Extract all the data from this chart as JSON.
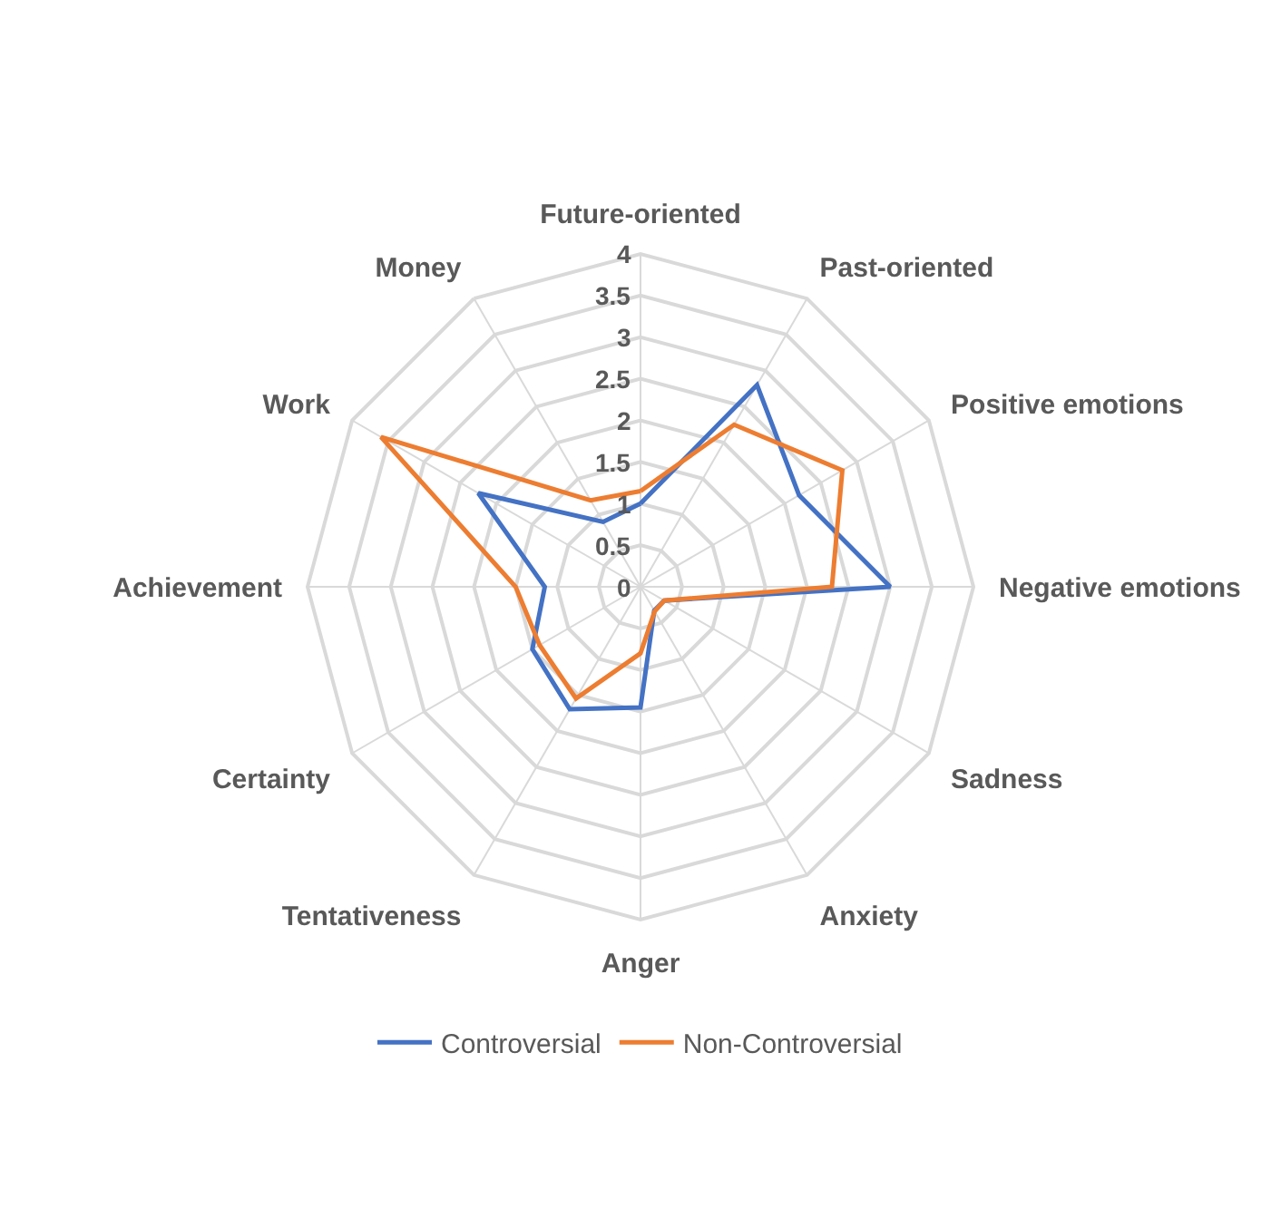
{
  "chart_data": {
    "type": "radar",
    "categories": [
      "Future-oriented",
      "Past-oriented",
      "Positive emotions",
      "Negative emotions",
      "Sadness",
      "Anxiety",
      "Anger",
      "Tentativeness",
      "Certainty",
      "Achievement",
      "Work",
      "Money"
    ],
    "series": [
      {
        "name": "Controversial",
        "color": "#4472c4",
        "values": [
          1.0,
          2.8,
          2.2,
          3.0,
          0.33,
          0.33,
          1.45,
          1.7,
          1.5,
          1.15,
          2.25,
          0.9
        ]
      },
      {
        "name": "Non-Controversial",
        "color": "#ed7d31",
        "values": [
          1.15,
          2.25,
          2.8,
          2.3,
          0.33,
          0.34,
          0.8,
          1.55,
          1.4,
          1.5,
          3.6,
          1.2
        ]
      }
    ],
    "ylim": [
      0,
      4
    ],
    "yticks": [
      0,
      0.5,
      1,
      1.5,
      2,
      2.5,
      3,
      3.5,
      4
    ],
    "grid": true,
    "legend": "bottom",
    "marker": "none"
  }
}
